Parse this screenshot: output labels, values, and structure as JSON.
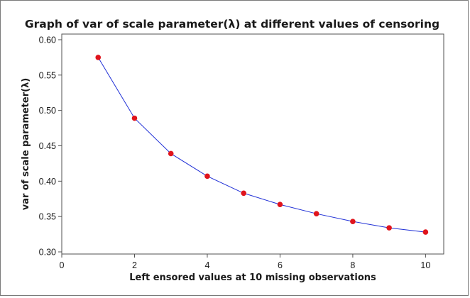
{
  "chart_data": {
    "type": "line",
    "title": "Graph of var of scale parameter(λ)  at different values of censoring",
    "xlabel": "Left ensored values at 10 missing observations",
    "ylabel": "var of scale parameter(λ)",
    "xlim": [
      0,
      10.5
    ],
    "ylim": [
      0.297,
      0.608
    ],
    "x_ticks": [
      0,
      2,
      4,
      6,
      8,
      10
    ],
    "x_tick_labels": [
      "0",
      "2",
      "4",
      "6",
      "8",
      "10"
    ],
    "y_ticks": [
      0.3,
      0.35,
      0.4,
      0.45,
      0.5,
      0.55,
      0.6
    ],
    "y_tick_labels": [
      "0.30",
      "0.35",
      "0.40",
      "0.45",
      "0.50",
      "0.55",
      "0.60"
    ],
    "grid": false,
    "legend": "none",
    "series": [
      {
        "name": "var of scale parameter",
        "x": [
          1,
          2,
          3,
          4,
          5,
          6,
          7,
          8,
          9,
          10
        ],
        "values": [
          0.575,
          0.489,
          0.439,
          0.407,
          0.383,
          0.367,
          0.354,
          0.343,
          0.334,
          0.328
        ]
      }
    ],
    "colors": {
      "line": "#1f2fd6",
      "marker": "#e0141c",
      "outer_border": "#7a7a7a",
      "plot_border": "#505050"
    }
  }
}
